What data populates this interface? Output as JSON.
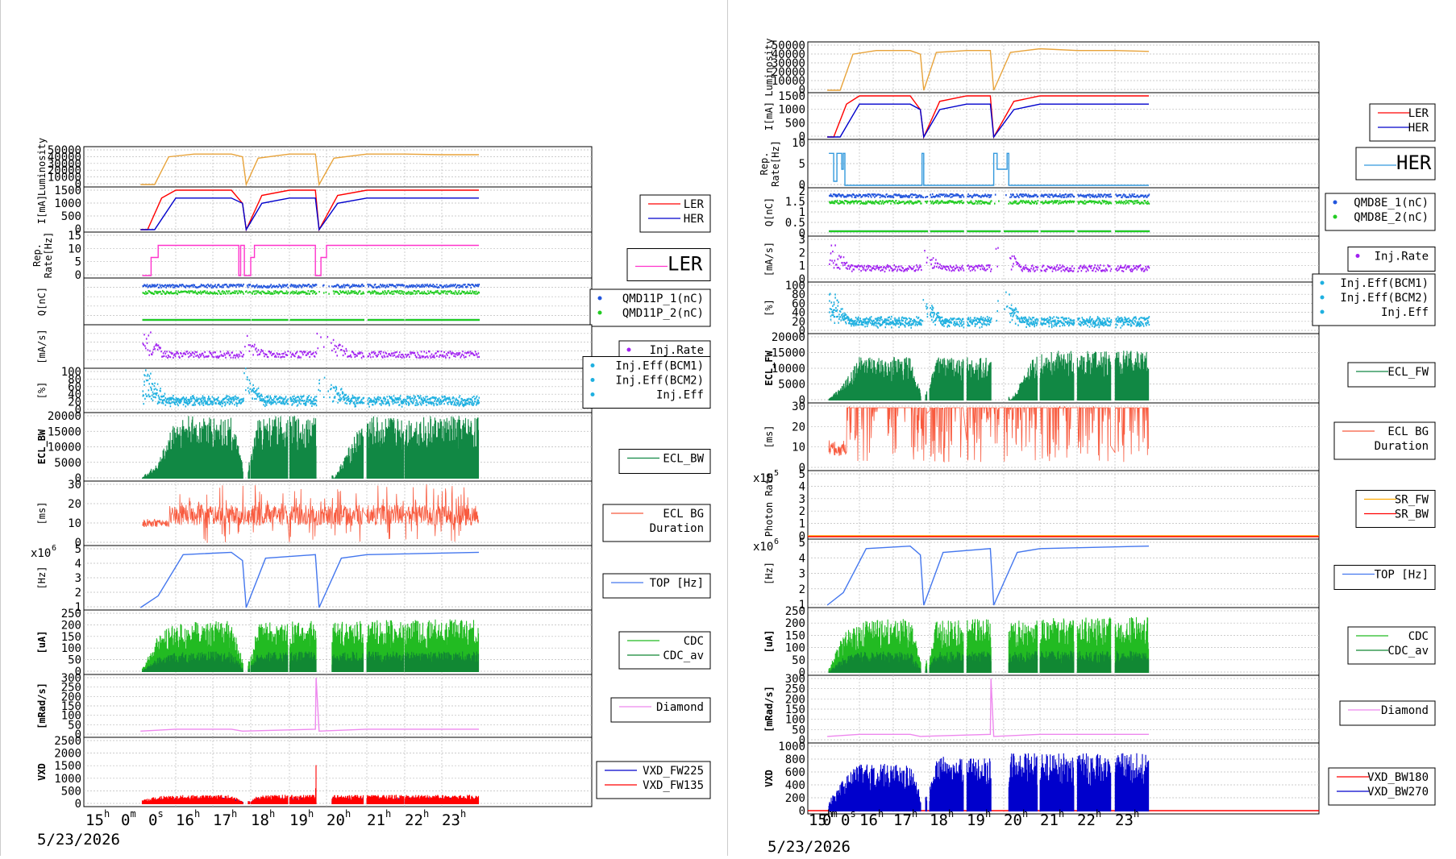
{
  "colors": {
    "luminosity": "#e8a33a",
    "ler": "#ff0000",
    "her": "#0000cc",
    "rep_ler": "#ff33cc",
    "rep_her": "#3399dd",
    "q1": "#2255dd",
    "q2": "#22cc22",
    "inj_rate": "#a020f0",
    "inj_eff": "#1fb0e0",
    "ecl": "#118844",
    "ecl_bg": "#f85a3e",
    "top": "#4477ee",
    "cdc": "#22bb22",
    "cdc_av": "#118833",
    "diamond": "#ee88ee",
    "vxd_a": "#0000cc",
    "vxd_b": "#ff0000",
    "sr_fw": "#ffaa00",
    "sr_bw": "#ff0000"
  },
  "left": {
    "date": "5/23/2026",
    "x_ticks": [
      {
        "h": "15",
        "s": "h"
      },
      {
        "h": "0",
        "s": "m"
      },
      {
        "h": "0",
        "s": "s"
      },
      {
        "h": "16",
        "s": "h"
      },
      {
        "h": "17",
        "s": "h"
      },
      {
        "h": "18",
        "s": "h"
      },
      {
        "h": "19",
        "s": "h"
      },
      {
        "h": "20",
        "s": "h"
      },
      {
        "h": "21",
        "s": "h"
      },
      {
        "h": "22",
        "s": "h"
      },
      {
        "h": "23",
        "s": "h"
      }
    ],
    "panels": [
      {
        "ylabel": "Luminosity",
        "ticks": [
          "50000",
          "40000",
          "30000",
          "20000",
          "10000",
          "0"
        ],
        "legend": []
      },
      {
        "ylabel": "I[mA]",
        "ticks": [
          "1500",
          "1000",
          "500",
          "0"
        ],
        "legend": [
          "LER",
          "HER"
        ]
      },
      {
        "ylabel": "Rep. Rate[Hz]",
        "ticks": [
          "15",
          "10",
          "5",
          "0"
        ],
        "legend": [
          "LER"
        ]
      },
      {
        "ylabel": "Q[nC]",
        "ticks": [],
        "legend": [
          "QMD11P_1(nC)",
          "QMD11P_2(nC)"
        ]
      },
      {
        "ylabel": "[mA/s]",
        "ticks": [],
        "legend": [
          "Inj.Rate"
        ]
      },
      {
        "ylabel": "[%]",
        "ticks": [
          "100",
          "80",
          "60",
          "40",
          "20",
          "0"
        ],
        "legend": [
          "Inj.Eff(BCM1)",
          "Inj.Eff(BCM2)",
          "Inj.Eff"
        ]
      },
      {
        "ylabel": "ECL_BW",
        "ticks": [
          "20000",
          "15000",
          "10000",
          "5000",
          "0"
        ],
        "legend": [
          "ECL_BW"
        ]
      },
      {
        "ylabel": "[ms]",
        "ticks": [
          "30",
          "20",
          "10",
          "0"
        ],
        "legend": [
          "ECL BG",
          "Duration"
        ]
      },
      {
        "ylabel": "[Hz]",
        "multiplier": "x10",
        "mult_exp": "6",
        "ticks": [
          "5",
          "4",
          "3",
          "2",
          "1"
        ],
        "legend": [
          "TOP [Hz]"
        ]
      },
      {
        "ylabel": "[uA]",
        "ticks": [
          "250",
          "200",
          "150",
          "100",
          "50",
          "0"
        ],
        "legend": [
          "CDC",
          "CDC_av"
        ]
      },
      {
        "ylabel": "[mRad/s]",
        "ticks": [
          "300",
          "250",
          "200",
          "150",
          "100",
          "50",
          "0"
        ],
        "legend": [
          "Diamond"
        ]
      },
      {
        "ylabel": "VXD",
        "ticks": [
          "2500",
          "2000",
          "1500",
          "1000",
          "500",
          "0"
        ],
        "legend": [
          "VXD_FW225",
          "VXD_FW135"
        ]
      }
    ]
  },
  "right": {
    "date": "5/23/2026",
    "x_ticks": [
      {
        "h": "15",
        "s": "h"
      },
      {
        "h": "0",
        "s": "m"
      },
      {
        "h": "0",
        "s": "s"
      },
      {
        "h": "16",
        "s": "h"
      },
      {
        "h": "17",
        "s": "h"
      },
      {
        "h": "18",
        "s": "h"
      },
      {
        "h": "19",
        "s": "h"
      },
      {
        "h": "20",
        "s": "h"
      },
      {
        "h": "21",
        "s": "h"
      },
      {
        "h": "22",
        "s": "h"
      },
      {
        "h": "23",
        "s": "h"
      }
    ],
    "panels": [
      {
        "ylabel": "Luminosity",
        "ticks": [
          "50000",
          "40000",
          "30000",
          "20000",
          "10000",
          "0"
        ],
        "legend": []
      },
      {
        "ylabel": "I[mA]",
        "ticks": [
          "1500",
          "1000",
          "500",
          "0"
        ],
        "legend": [
          "LER",
          "HER"
        ]
      },
      {
        "ylabel": "Rep. Rate[Hz]",
        "ticks": [
          "10",
          "5",
          "0"
        ],
        "legend": [
          "HER"
        ]
      },
      {
        "ylabel": "Q[nC]",
        "ticks": [
          "2",
          "1.5",
          "1",
          "0.5",
          "0"
        ],
        "legend": [
          "QMD8E_1(nC)",
          "QMD8E_2(nC)"
        ]
      },
      {
        "ylabel": "[mA/s]",
        "ticks": [
          "3",
          "2",
          "1",
          "0"
        ],
        "legend": [
          "Inj.Rate"
        ]
      },
      {
        "ylabel": "[%]",
        "ticks": [
          "100",
          "80",
          "60",
          "40",
          "20",
          "0"
        ],
        "legend": [
          "Inj.Eff(BCM1)",
          "Inj.Eff(BCM2)",
          "Inj.Eff"
        ]
      },
      {
        "ylabel": "ECL_FW",
        "ticks": [
          "20000",
          "15000",
          "10000",
          "5000",
          "0"
        ],
        "legend": [
          "ECL_FW"
        ]
      },
      {
        "ylabel": "[ms]",
        "ticks": [
          "30",
          "20",
          "10",
          "0"
        ],
        "legend": [
          "ECL BG",
          "Duration"
        ]
      },
      {
        "ylabel": "Photon Rate",
        "multiplier": "x10",
        "mult_exp": "5",
        "ticks": [
          "5",
          "4",
          "3",
          "2",
          "1",
          "0"
        ],
        "legend": [
          "SR_FW",
          "SR_BW"
        ]
      },
      {
        "ylabel": "[Hz]",
        "multiplier": "x10",
        "mult_exp": "6",
        "ticks": [
          "5",
          "4",
          "3",
          "2",
          "1"
        ],
        "legend": [
          "TOP [Hz]"
        ]
      },
      {
        "ylabel": "[uA]",
        "ticks": [
          "250",
          "200",
          "150",
          "100",
          "50",
          "0"
        ],
        "legend": [
          "CDC",
          "CDC_av"
        ]
      },
      {
        "ylabel": "[mRad/s]",
        "ticks": [
          "300",
          "250",
          "200",
          "150",
          "100",
          "50",
          "0"
        ],
        "legend": [
          "Diamond"
        ]
      },
      {
        "ylabel": "VXD",
        "ticks": [
          "1000",
          "800",
          "600",
          "400",
          "200",
          "0"
        ],
        "legend": [
          "VXD_BW180",
          "VXD_BW270"
        ]
      }
    ]
  },
  "chart_data": [
    {
      "type": "line",
      "title": "",
      "xlabel": "",
      "date": "5/23/2026",
      "x_range_hours": [
        15,
        24
      ],
      "series": [
        {
          "name": "Luminosity",
          "x": [
            15,
            15.4,
            15.8,
            16.5,
            17.5,
            17.8,
            17.9,
            18.2,
            19,
            19.7,
            19.8,
            20.2,
            21,
            22,
            23,
            24
          ],
          "y": [
            0,
            0,
            40000,
            44000,
            44000,
            40000,
            0,
            38000,
            44000,
            44000,
            0,
            38000,
            44000,
            44000,
            43000,
            43000
          ]
        },
        {
          "name": "LER",
          "x": [
            15,
            15.2,
            15.6,
            16,
            17.5,
            17.8,
            17.9,
            18.3,
            19,
            19.7,
            19.8,
            20.3,
            21,
            22,
            24
          ],
          "y": [
            0,
            0,
            1200,
            1600,
            1650,
            1000,
            0,
            1300,
            1650,
            1650,
            0,
            1300,
            1650,
            1650,
            1650
          ]
        },
        {
          "name": "HER",
          "x": [
            15,
            15.4,
            16,
            17.5,
            17.8,
            17.9,
            18.3,
            19,
            19.7,
            19.8,
            20.3,
            21,
            24
          ],
          "y": [
            0,
            0,
            1200,
            1200,
            1000,
            0,
            1000,
            1200,
            1200,
            0,
            1000,
            1200,
            1200
          ]
        },
        {
          "name": "ECL_BW",
          "x": [
            15,
            15.5,
            16,
            17.5,
            17.9,
            18.2,
            19,
            19.7,
            20.2,
            21,
            24
          ],
          "y": [
            0,
            5000,
            19000,
            19000,
            0,
            19000,
            19000,
            19000,
            0,
            19000,
            19000
          ]
        },
        {
          "name": "TOP [Hz]",
          "x": [
            15,
            15.5,
            16.2,
            17.5,
            17.8,
            17.9,
            18.4,
            19.7,
            19.8,
            20.4,
            21,
            24
          ],
          "y": [
            0,
            1000000,
            4500000,
            4700000,
            4000000,
            0,
            4200000,
            4500000,
            0,
            4200000,
            4500000,
            4700000
          ]
        },
        {
          "name": "CDC",
          "x": [
            15,
            15.5,
            16,
            17.5,
            17.9,
            18.2,
            19.7,
            19.8,
            20.2,
            21,
            24
          ],
          "y": [
            0,
            150,
            200,
            210,
            0,
            200,
            210,
            0,
            200,
            210,
            215
          ]
        },
        {
          "name": "CDC_av",
          "x": [
            15,
            15.5,
            16,
            17.5,
            17.9,
            18.2,
            19.7,
            19.8,
            20.2,
            21,
            24
          ],
          "y": [
            0,
            60,
            80,
            85,
            0,
            80,
            85,
            0,
            80,
            85,
            85
          ]
        },
        {
          "name": "Diamond",
          "x": [
            15,
            16,
            17.5,
            17.8,
            19.7,
            19.72,
            19.8,
            21,
            24
          ],
          "y": [
            20,
            30,
            30,
            20,
            30,
            300,
            20,
            30,
            30
          ]
        },
        {
          "name": "VXD_FW225",
          "x": [
            15,
            15.5,
            16,
            17.5,
            17.9,
            18.2,
            19.7,
            19.8,
            20.2,
            24
          ],
          "y": [
            100,
            200,
            250,
            250,
            50,
            250,
            250,
            50,
            250,
            250
          ]
        },
        {
          "name": "VXD_FW135",
          "x": [
            15,
            15.5,
            16,
            17.5,
            17.9,
            18.2,
            19.7,
            19.72,
            19.8,
            20.2,
            24
          ],
          "y": [
            150,
            300,
            350,
            350,
            80,
            350,
            350,
            2500,
            80,
            350,
            350
          ]
        }
      ]
    },
    {
      "type": "line",
      "title": "",
      "xlabel": "",
      "date": "5/23/2026",
      "x_range_hours": [
        15,
        24
      ],
      "series": [
        {
          "name": "Luminosity",
          "x": [
            15,
            15.4,
            15.8,
            16.5,
            17.5,
            17.8,
            17.9,
            18.2,
            19,
            19.7,
            19.8,
            20.2,
            21,
            22,
            23,
            24
          ],
          "y": [
            0,
            0,
            40000,
            44000,
            44000,
            40000,
            0,
            42000,
            44000,
            44000,
            0,
            42000,
            46000,
            44000,
            44000,
            43000
          ]
        },
        {
          "name": "LER",
          "x": [
            15,
            15.2,
            15.6,
            16,
            17.5,
            17.8,
            17.9,
            18.3,
            19,
            19.7,
            19.8,
            20.3,
            21,
            22,
            24
          ],
          "y": [
            0,
            0,
            1200,
            1600,
            1650,
            1000,
            0,
            1300,
            1650,
            1650,
            0,
            1300,
            1650,
            1650,
            1650
          ]
        },
        {
          "name": "HER",
          "x": [
            15,
            15.4,
            16,
            17.5,
            17.8,
            17.9,
            18.3,
            19,
            19.7,
            19.8,
            20.3,
            21,
            24
          ],
          "y": [
            0,
            0,
            1200,
            1200,
            1000,
            0,
            1000,
            1200,
            1200,
            0,
            1000,
            1200,
            1200
          ]
        },
        {
          "name": "ECL_FW",
          "x": [
            15,
            15.5,
            16,
            17.5,
            17.9,
            18.2,
            19.7,
            20.2,
            21,
            24
          ],
          "y": [
            0,
            5000,
            13000,
            13000,
            0,
            13000,
            13000,
            0,
            15000,
            15000
          ]
        },
        {
          "name": "TOP [Hz]",
          "x": [
            15,
            15.5,
            16.2,
            17.5,
            17.8,
            17.9,
            18.4,
            19.7,
            19.8,
            20.4,
            21,
            24
          ],
          "y": [
            0,
            1000000,
            4500000,
            4700000,
            4000000,
            0,
            4200000,
            4500000,
            0,
            4200000,
            4500000,
            4700000
          ]
        },
        {
          "name": "CDC",
          "x": [
            15,
            15.5,
            16,
            17.5,
            17.9,
            18.2,
            19.7,
            19.8,
            20.2,
            21,
            24
          ],
          "y": [
            0,
            150,
            200,
            210,
            0,
            200,
            210,
            0,
            200,
            210,
            215
          ]
        },
        {
          "name": "CDC_av",
          "x": [
            15,
            15.5,
            16,
            17.5,
            17.9,
            18.2,
            19.7,
            19.8,
            20.2,
            21,
            24
          ],
          "y": [
            0,
            60,
            80,
            85,
            0,
            80,
            85,
            0,
            80,
            85,
            85
          ]
        },
        {
          "name": "Diamond",
          "x": [
            15,
            16,
            17.5,
            17.8,
            19.7,
            19.72,
            19.8,
            21,
            24
          ],
          "y": [
            20,
            30,
            30,
            20,
            30,
            300,
            20,
            30,
            30
          ]
        },
        {
          "name": "VXD_BW270",
          "x": [
            15,
            15.5,
            16,
            17.5,
            17.9,
            18.2,
            19.7,
            19.8,
            20.2,
            21,
            24
          ],
          "y": [
            100,
            500,
            700,
            700,
            100,
            800,
            800,
            100,
            900,
            850,
            850
          ]
        }
      ]
    }
  ]
}
